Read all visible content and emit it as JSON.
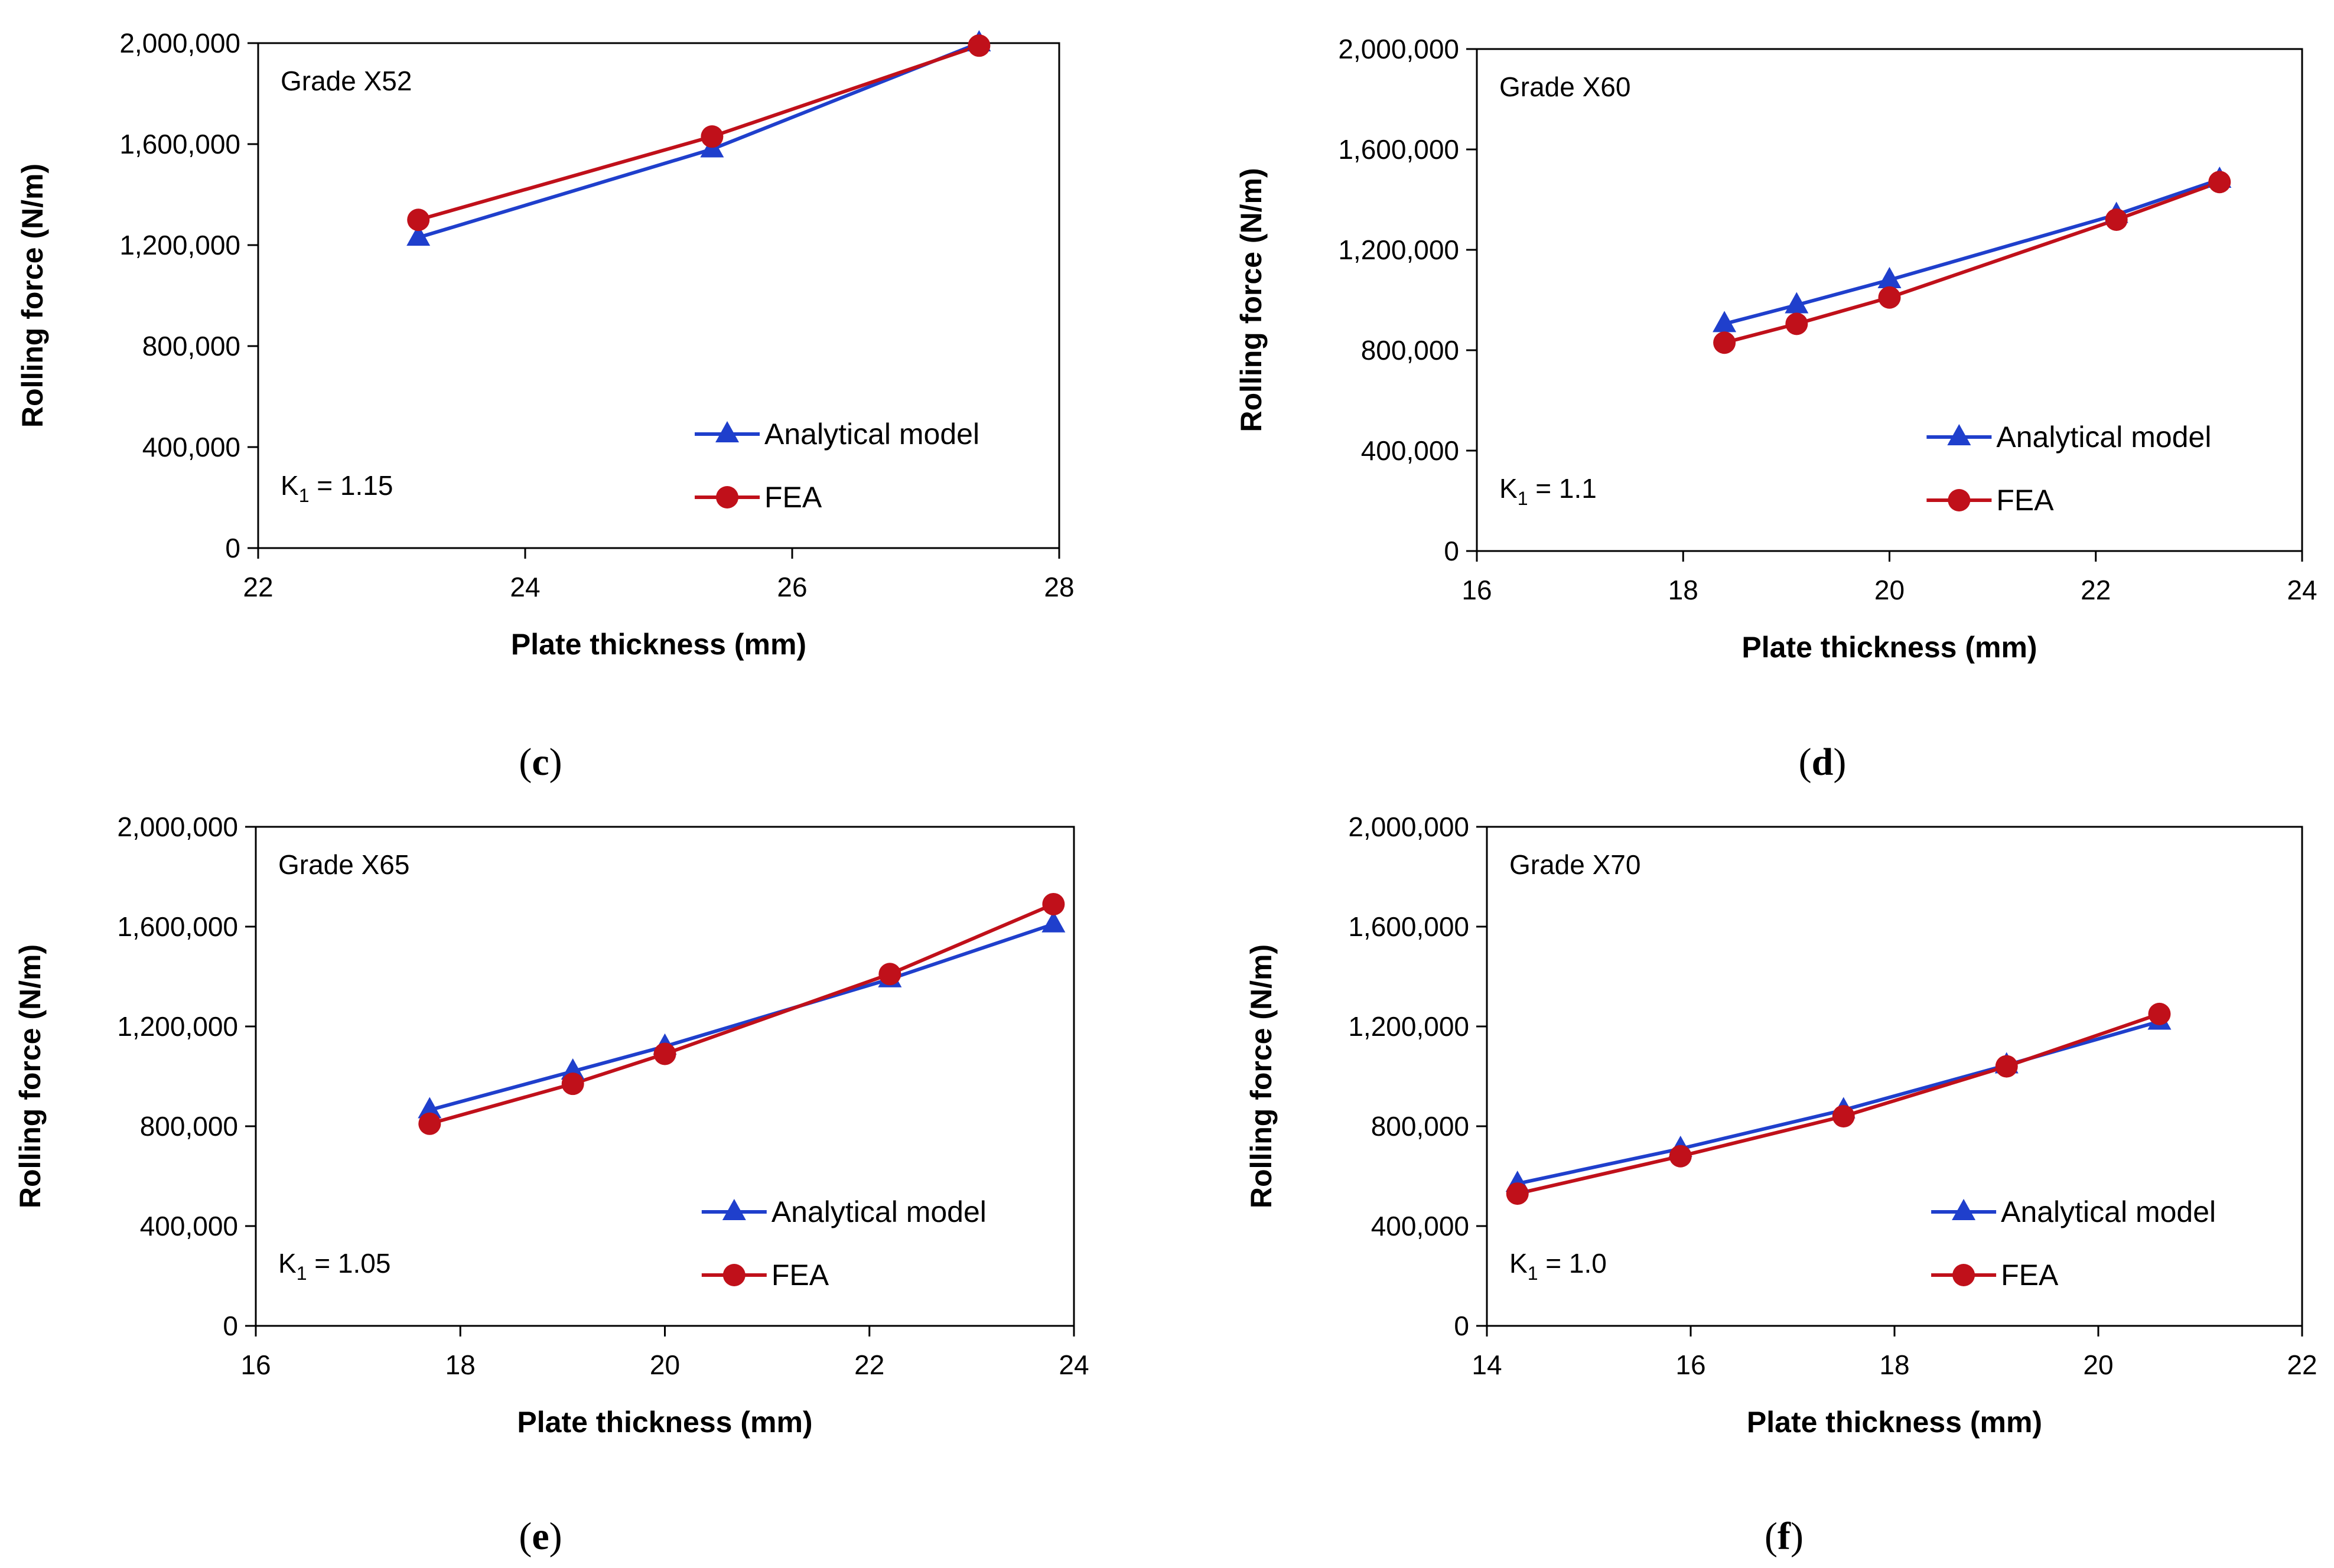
{
  "colors": {
    "analytical": "#1f3fcc",
    "fea": "#c0101a",
    "axis": "#000000",
    "background": "#ffffff"
  },
  "chart_data": [
    {
      "type": "line",
      "panel": "c",
      "caption": {
        "open": "(",
        "letter": "c",
        "close": ")"
      },
      "annotation": "Grade X52",
      "k1_label": "K",
      "k1_sub": "1",
      "k1_value": " = 1.15",
      "xlabel": "Plate thickness (mm)",
      "ylabel": "Rolling force  (N/m)",
      "xlim": [
        22,
        28
      ],
      "xticks": [
        22,
        24,
        26,
        28
      ],
      "ylim": [
        0,
        2000000
      ],
      "yticks": [
        0,
        400000,
        800000,
        1200000,
        1600000,
        2000000
      ],
      "ytick_labels": [
        "0",
        "400,000",
        "800,000",
        "1,200,000",
        "1,600,000",
        "2,000,000"
      ],
      "legend_position": "bottom-right",
      "series": [
        {
          "name": "Analytical model",
          "marker": "triangle",
          "x": [
            23.2,
            25.4,
            27.4
          ],
          "y": [
            1230000,
            1580000,
            2000000
          ]
        },
        {
          "name": "FEA",
          "marker": "circle",
          "x": [
            23.2,
            25.4,
            27.4
          ],
          "y": [
            1300000,
            1630000,
            1990000
          ]
        }
      ]
    },
    {
      "type": "line",
      "panel": "d",
      "caption": {
        "open": "(",
        "letter": "d",
        "close": ")"
      },
      "annotation": "Grade X60",
      "k1_label": "K",
      "k1_sub": "1",
      "k1_value": " = 1.1",
      "xlabel": "Plate thickness (mm)",
      "ylabel": "Rolling force  (N/m)",
      "xlim": [
        16,
        24
      ],
      "xticks": [
        16,
        18,
        20,
        22,
        24
      ],
      "ylim": [
        0,
        2000000
      ],
      "yticks": [
        0,
        400000,
        800000,
        1200000,
        1600000,
        2000000
      ],
      "ytick_labels": [
        "0",
        "400,000",
        "800,000",
        "1,200,000",
        "1,600,000",
        "2,000,000"
      ],
      "legend_position": "bottom-right",
      "series": [
        {
          "name": "Analytical model",
          "marker": "triangle",
          "x": [
            18.4,
            19.1,
            20.0,
            22.2,
            23.2
          ],
          "y": [
            905000,
            980000,
            1080000,
            1340000,
            1480000
          ]
        },
        {
          "name": "FEA",
          "marker": "circle",
          "x": [
            18.4,
            19.1,
            20.0,
            22.2,
            23.2
          ],
          "y": [
            830000,
            905000,
            1010000,
            1320000,
            1470000
          ]
        }
      ]
    },
    {
      "type": "line",
      "panel": "e",
      "caption": {
        "open": "(",
        "letter": "e",
        "close": ")"
      },
      "annotation": "Grade X65",
      "k1_label": "K",
      "k1_sub": "1",
      "k1_value": " = 1.05",
      "xlabel": "Plate thickness (mm)",
      "ylabel": "Rolling force  (N/m)",
      "xlim": [
        16,
        24
      ],
      "xticks": [
        16,
        18,
        20,
        22,
        24
      ],
      "ylim": [
        0,
        2000000
      ],
      "yticks": [
        0,
        400000,
        800000,
        1200000,
        1600000,
        2000000
      ],
      "ytick_labels": [
        "0",
        "400,000",
        "800,000",
        "1,200,000",
        "1,600,000",
        "2,000,000"
      ],
      "legend_position": "bottom-right",
      "series": [
        {
          "name": "Analytical model",
          "marker": "triangle",
          "x": [
            17.7,
            19.1,
            20.0,
            22.2,
            23.8
          ],
          "y": [
            865000,
            1020000,
            1120000,
            1390000,
            1610000
          ]
        },
        {
          "name": "FEA",
          "marker": "circle",
          "x": [
            17.7,
            19.1,
            20.0,
            22.2,
            23.8
          ],
          "y": [
            810000,
            970000,
            1090000,
            1410000,
            1690000
          ]
        }
      ]
    },
    {
      "type": "line",
      "panel": "f",
      "caption": {
        "open": "(",
        "letter": "f",
        "close": ")"
      },
      "annotation": "Grade X70",
      "k1_label": "K",
      "k1_sub": "1",
      "k1_value": " = 1.0",
      "xlabel": "Plate thickness (mm)",
      "ylabel": "Rolling force  (N/m)",
      "xlim": [
        14,
        22
      ],
      "xticks": [
        14,
        16,
        18,
        20,
        22
      ],
      "ylim": [
        0,
        2000000
      ],
      "yticks": [
        0,
        400000,
        800000,
        1200000,
        1600000,
        2000000
      ],
      "ytick_labels": [
        "0",
        "400,000",
        "800,000",
        "1,200,000",
        "1,600,000",
        "2,000,000"
      ],
      "legend_position": "bottom-right",
      "series": [
        {
          "name": "Analytical model",
          "marker": "triangle",
          "x": [
            14.3,
            15.9,
            17.5,
            19.1,
            20.6
          ],
          "y": [
            570000,
            710000,
            865000,
            1045000,
            1220000
          ]
        },
        {
          "name": "FEA",
          "marker": "circle",
          "x": [
            14.3,
            15.9,
            17.5,
            19.1,
            20.6
          ],
          "y": [
            530000,
            680000,
            840000,
            1040000,
            1250000
          ]
        }
      ]
    }
  ]
}
